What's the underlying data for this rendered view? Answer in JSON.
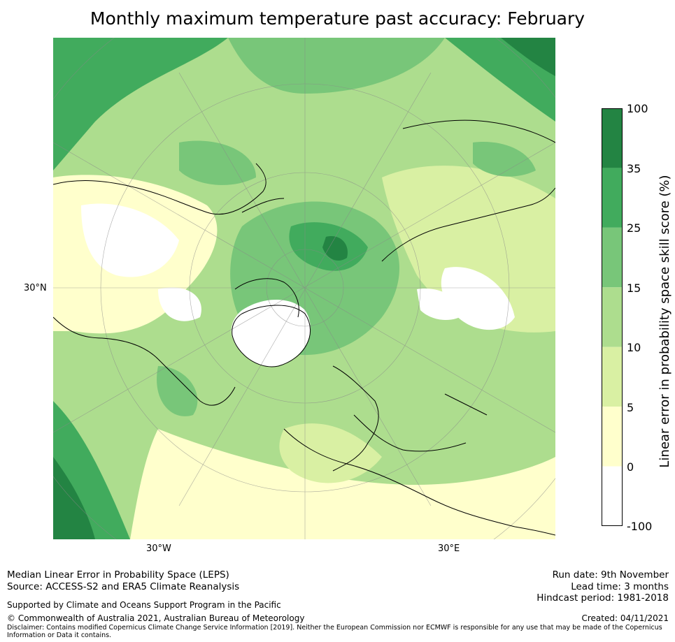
{
  "title": "Monthly maximum temperature past accuracy: February",
  "map": {
    "lat_labels": [
      "30°N"
    ],
    "lon_labels": [
      "30°W",
      "30°E"
    ]
  },
  "colorbar": {
    "label": "Linear error in probability space skill score (%)",
    "ticks": [
      "100",
      "35",
      "25",
      "15",
      "10",
      "5",
      "0",
      "-100"
    ],
    "bins": [
      {
        "range": "35 to 100",
        "color": "#238443"
      },
      {
        "range": "25 to 35",
        "color": "#41ab5d"
      },
      {
        "range": "15 to 25",
        "color": "#78c679"
      },
      {
        "range": "10 to 15",
        "color": "#addd8e"
      },
      {
        "range": "5 to 10",
        "color": "#d9f0a3"
      },
      {
        "range": "0 to 5",
        "color": "#ffffcc"
      },
      {
        "range": "-100 to 0",
        "color": "#ffffff"
      }
    ]
  },
  "footer": {
    "method": "Median Linear Error in Probability Space (LEPS)",
    "source": "Source: ACCESS-S2 and ERA5 Climate Reanalysis",
    "support": "Supported by Climate and Oceans Support Program in the Pacific",
    "copyright": "© Commonwealth of Australia 2021, Australian Bureau of Meteorology",
    "disclaimer_line1": "Disclaimer: Contains modified Copernicus Climate Change Service Information [2019]. Neither the European Commission nor ECMWF is responsible for any use that may be made of the Copernicus",
    "disclaimer_line2": "Information or Data it contains.",
    "run_date": "Run date: 9th November",
    "lead_time": "Lead time: 3 months",
    "hindcast": "Hindcast period: 1981-2018",
    "created": "Created: 04/11/2021"
  }
}
